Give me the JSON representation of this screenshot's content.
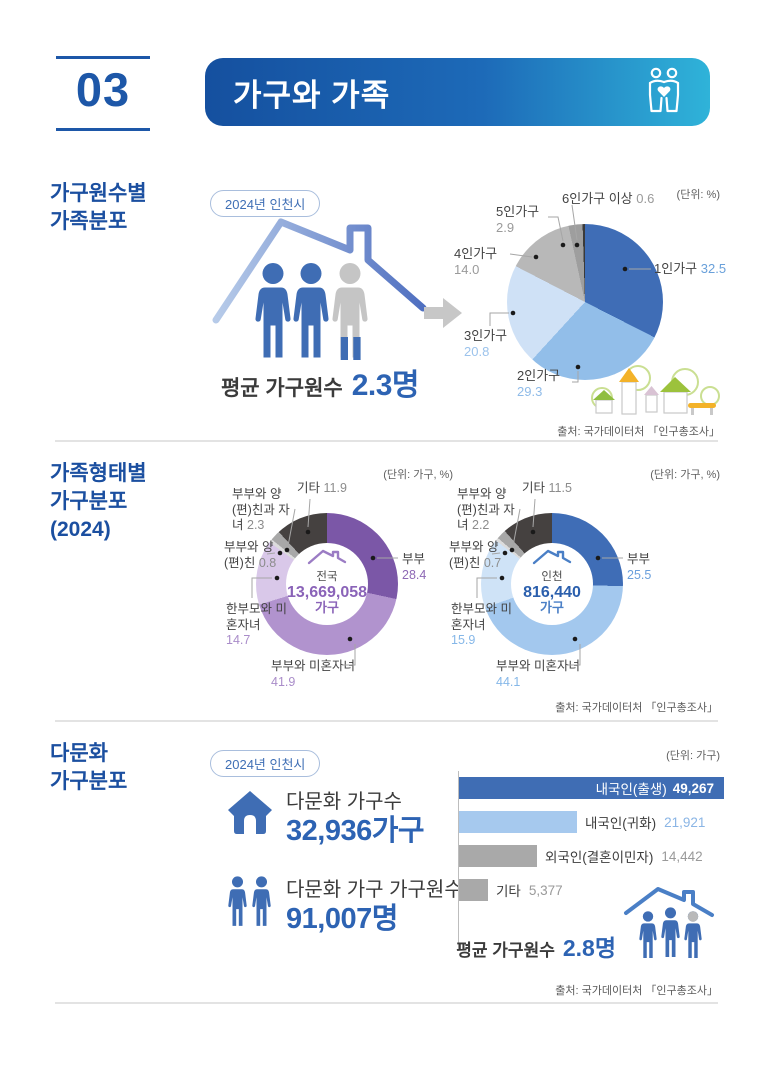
{
  "header": {
    "number": "03",
    "title": "가구와 가족"
  },
  "badge": "2024년 인천시",
  "source": "출처: 국가데이터처 「인구총조사」",
  "section1": {
    "title_line1": "가구원수별",
    "title_line2": "가족분포",
    "unit": "(단위: %)",
    "avg_label": "평균 가구원수",
    "avg_value": "2.3명"
  },
  "section2": {
    "title_line1": "가족형태별",
    "title_line2": "가구분포",
    "title_line3": "(2024)",
    "unit": "(단위: 가구, %)"
  },
  "section3": {
    "title_line1": "다문화",
    "title_line2": "가구분포",
    "unit": "(단위: 가구)",
    "stat1_label": "다문화 가구수",
    "stat1_value": "32,936가구",
    "stat2_label": "다문화 가구 가구원수",
    "stat2_value": "91,007명",
    "avg_label": "평균 가구원수",
    "avg_value": "2.8명"
  },
  "chart_data": [
    {
      "id": "household-size-pie",
      "type": "pie",
      "title": "가구원수별 가족분포 (2024년 인천시)",
      "unit": "%",
      "labels": [
        "1인가구",
        "2인가구",
        "3인가구",
        "4인가구",
        "5인가구",
        "6인가구 이상"
      ],
      "values": [
        32.5,
        29.3,
        20.8,
        14.0,
        2.9,
        0.6
      ],
      "value_labels": [
        "32.5",
        "29.3",
        "20.8",
        "14.0",
        "2.9",
        "0.6"
      ],
      "colors": [
        "#3f6db6",
        "#92bee9",
        "#cfe1f6",
        "#b8b8b8",
        "#9e9e9e",
        "#3a3a3a"
      ],
      "value_colors": [
        "#69a0da",
        "#8fbbe8",
        "#9cc3ec",
        "#9a9a9a",
        "#9a9a9a",
        "#9a9a9a"
      ]
    },
    {
      "id": "family-type-donut-korea",
      "type": "donut",
      "title": "가족형태별 가구분포 (2024) - 전국",
      "unit": "가구, %",
      "center_label": "전국",
      "center_value": "13,669,058",
      "center_unit": "가구",
      "labels": [
        "부부",
        "부부와 미혼자녀",
        "한부모와 미혼자녀",
        "부부와 양(편)친",
        "부부와 양(편)친과 자녀",
        "기타"
      ],
      "values": [
        28.4,
        41.9,
        14.7,
        0.8,
        2.3,
        11.9
      ],
      "value_labels": [
        "28.4",
        "41.9",
        "14.7",
        "0.8",
        "2.3",
        "11.9"
      ],
      "colors": [
        "#7b57a7",
        "#b193ce",
        "#d9c8e9",
        "#dcdcdc",
        "#a8a8a8",
        "#454140"
      ],
      "value_colors": [
        "#8d68b5",
        "#a98cc9",
        "#a98cc9",
        "#8c8c8c",
        "#8c8c8c",
        "#8c8c8c"
      ]
    },
    {
      "id": "family-type-donut-incheon",
      "type": "donut",
      "title": "가족형태별 가구분포 (2024) - 인천",
      "unit": "가구, %",
      "center_label": "인천",
      "center_value": "816,440",
      "center_unit": "가구",
      "labels": [
        "부부",
        "부부와 미혼자녀",
        "한부모와 미혼자녀",
        "부부와 양(편)친",
        "부부와 양(편)친과 자녀",
        "기타"
      ],
      "values": [
        25.5,
        44.1,
        15.9,
        0.7,
        2.2,
        11.5
      ],
      "value_labels": [
        "25.5",
        "44.1",
        "15.9",
        "0.7",
        "2.2",
        "11.5"
      ],
      "colors": [
        "#3f6db6",
        "#a3c8ee",
        "#cfe3f7",
        "#dcdcdc",
        "#a8a8a8",
        "#454140"
      ],
      "value_colors": [
        "#6ba0dc",
        "#85b7e8",
        "#85b7e8",
        "#8c8c8c",
        "#8c8c8c",
        "#8c8c8c"
      ]
    },
    {
      "id": "multicultural-bar",
      "type": "bar",
      "orientation": "horizontal",
      "title": "다문화 가구분포 (2024년 인천시)",
      "unit": "가구",
      "categories": [
        "내국인(출생)",
        "내국인(귀화)",
        "외국인(결혼이민자)",
        "기타"
      ],
      "values": [
        49267,
        21921,
        14442,
        5377
      ],
      "value_labels": [
        "49,267",
        "21,921",
        "14,442",
        "5,377"
      ],
      "colors": [
        "#3f6db4",
        "#a6c9ee",
        "#a9a9a9",
        "#a9a9a9"
      ],
      "label_inside": [
        true,
        false,
        false,
        false
      ],
      "value_colors": [
        "#ffffff",
        "#8ab5e5",
        "#9a9a9a",
        "#9a9a9a"
      ],
      "xmax": 49267
    }
  ]
}
